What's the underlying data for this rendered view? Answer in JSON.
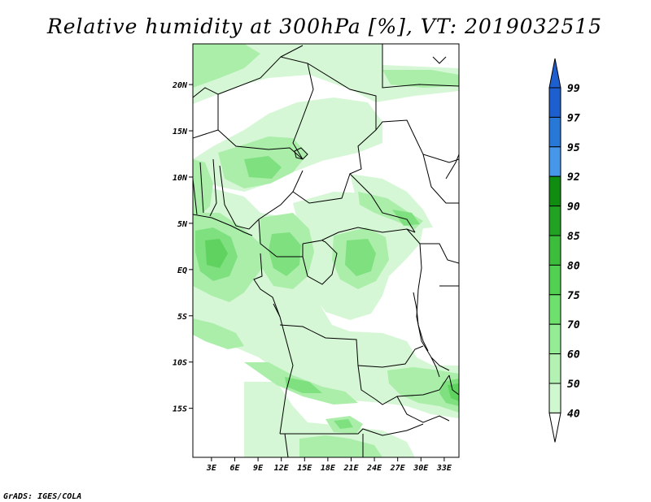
{
  "title": "Relative humidity at 300hPa [%], VT: 2019032515",
  "credit": "GrADS: IGES/COLA",
  "map": {
    "lat_ticks": [
      {
        "label": "20N",
        "value": 20
      },
      {
        "label": "15N",
        "value": 15
      },
      {
        "label": "10N",
        "value": 10
      },
      {
        "label": "5N",
        "value": 5
      },
      {
        "label": "EQ",
        "value": 0
      },
      {
        "label": "5S",
        "value": -5
      },
      {
        "label": "10S",
        "value": -10
      },
      {
        "label": "15S",
        "value": -15
      }
    ],
    "lon_ticks": [
      {
        "label": "3E",
        "value": 3
      },
      {
        "label": "6E",
        "value": 6
      },
      {
        "label": "9E",
        "value": 9
      },
      {
        "label": "12E",
        "value": 12
      },
      {
        "label": "15E",
        "value": 15
      },
      {
        "label": "18E",
        "value": 18
      },
      {
        "label": "21E",
        "value": 21
      },
      {
        "label": "24E",
        "value": 24
      },
      {
        "label": "27E",
        "value": 27
      },
      {
        "label": "30E",
        "value": 30
      },
      {
        "label": "33E",
        "value": 33
      }
    ]
  },
  "colorbar": {
    "labels": [
      "99",
      "97",
      "95",
      "92",
      "90",
      "85",
      "80",
      "75",
      "70",
      "60",
      "50",
      "40"
    ],
    "colors": [
      "#1e5fd0",
      "#2878d8",
      "#4696ea",
      "#108c10",
      "#22a222",
      "#3cbe3c",
      "#52d052",
      "#6ee06e",
      "#94ec94",
      "#b4f2b4",
      "#d0f8d0",
      "#eaffea"
    ],
    "under_color": "#ffffff",
    "over_color": "#1e5fd0"
  },
  "colors": {
    "light": "#d6f7d6",
    "mid": "#aaeeaa",
    "dark": "#7fe07f",
    "darker": "#5fd25f",
    "border": "#000000"
  }
}
